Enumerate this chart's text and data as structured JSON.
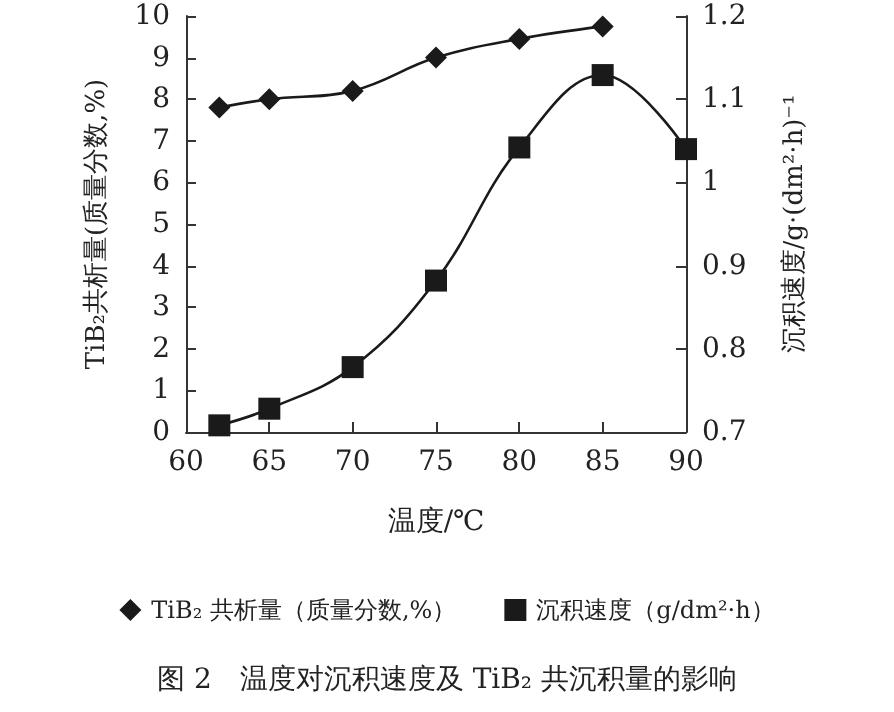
{
  "chart_data": {
    "type": "line",
    "title": "图 2　温度对沉积速度及 TiB₂ 共沉积量的影响",
    "xlabel": "温度/℃",
    "ylabel": "TiB₂共析量(质量分数,%)",
    "y2label": "沉积速度/g·(dm²·h)⁻¹",
    "x": [
      62,
      65,
      70,
      75,
      80,
      85
    ],
    "series": [
      {
        "name": "TiB₂ 共析量（质量分数,%）",
        "color": "#1a1a1a",
        "marker": "diamond",
        "values": [
          7.8,
          8.0,
          8.2,
          9.0,
          9.45,
          9.75
        ]
      },
      {
        "name": "沉积速度（g/dm²·h）",
        "color": "#1a1a1a",
        "marker": "square",
        "axis": "y2",
        "x": [
          62,
          65,
          70,
          75,
          80,
          85,
          90
        ],
        "values": [
          0.708,
          0.728,
          0.778,
          0.882,
          1.042,
          1.129,
          1.04
        ]
      }
    ],
    "xlim": [
      60,
      90
    ],
    "xticks": [
      60,
      65,
      70,
      75,
      80,
      85,
      90
    ],
    "ylim": [
      0,
      10
    ],
    "yticks": [
      0,
      1,
      2,
      3,
      4,
      5,
      6,
      7,
      8,
      9,
      10
    ],
    "y2lim": [
      0.7,
      1.2
    ],
    "y2ticks": [
      0.7,
      0.8,
      0.9,
      1,
      1.1,
      1.2
    ],
    "legend": "bottom",
    "grid": false,
    "line_style": "solid"
  }
}
